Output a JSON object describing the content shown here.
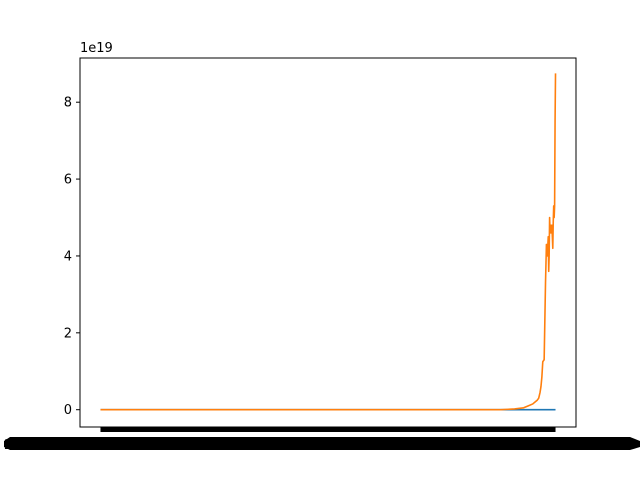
{
  "chart_data": {
    "type": "line",
    "title": "",
    "xlabel": "",
    "ylabel": "",
    "y_offset_label": "1e19",
    "y_ticks": [
      0,
      2,
      4,
      6,
      8
    ],
    "y_tick_labels": [
      "0",
      "2",
      "4",
      "6",
      "8"
    ],
    "ylim": [
      -0.45,
      9.15
    ],
    "xlim": [
      -0.045,
      1.045
    ],
    "x_ticks_note": "dense overlapping x tick labels rendered as a solid black band",
    "x_tick_label_prefix": "2",
    "grid": false,
    "legend": "none",
    "series": [
      {
        "color": "#1f77b4",
        "x": [
          0,
          1
        ],
        "y": [
          0,
          0
        ]
      },
      {
        "color": "#ff7f0e",
        "x": [
          0,
          0.5,
          0.88,
          0.91,
          0.93,
          0.94,
          0.95,
          0.955,
          0.96,
          0.963,
          0.966,
          0.968,
          0.97,
          0.972,
          0.975,
          0.978,
          0.98,
          0.982,
          0.984,
          0.985,
          0.986,
          0.987,
          0.988,
          0.989,
          0.99,
          0.992,
          0.994,
          0.995,
          0.996,
          0.997,
          0.998,
          0.999,
          1.0
        ],
        "y": [
          0,
          0,
          0,
          0.02,
          0.05,
          0.1,
          0.15,
          0.2,
          0.25,
          0.3,
          0.45,
          0.6,
          0.85,
          1.25,
          1.3,
          3.3,
          4.3,
          4.0,
          4.5,
          3.6,
          4.0,
          5.0,
          4.6,
          4.8,
          4.6,
          4.8,
          4.2,
          4.9,
          5.3,
          5.0,
          5.3,
          7.5,
          8.75
        ]
      }
    ]
  }
}
